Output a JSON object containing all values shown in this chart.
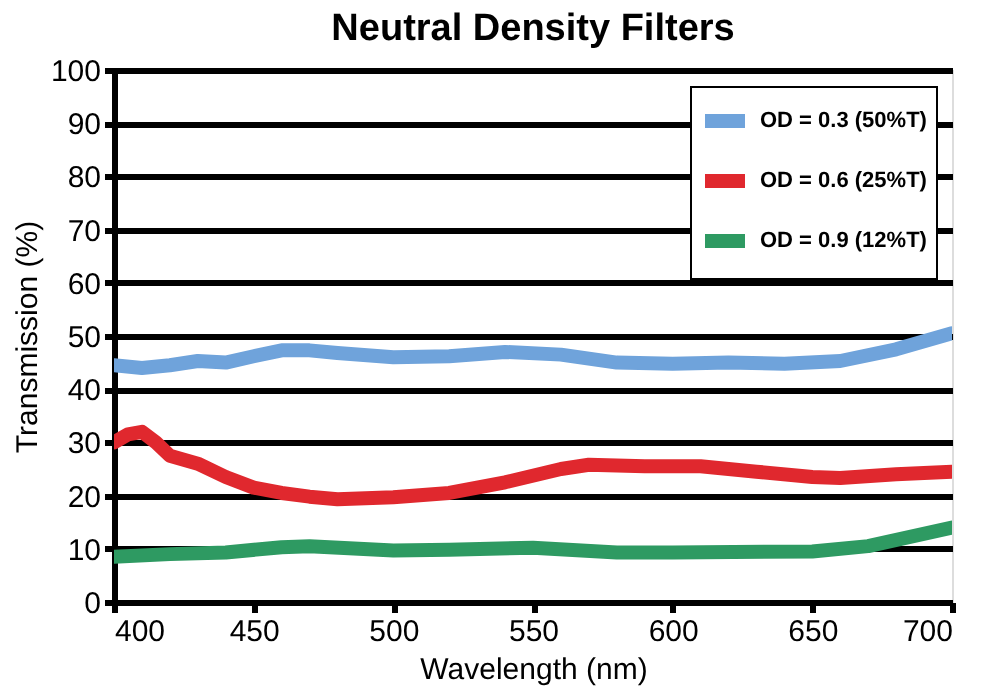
{
  "chart_data": {
    "type": "line",
    "title": "Neutral Density Filters",
    "xlabel": "Wavelength (nm)",
    "ylabel": "Transmission (%)",
    "xlim": [
      400,
      700
    ],
    "xticks": [
      400,
      450,
      500,
      550,
      600,
      650,
      700
    ],
    "ylim": [
      0,
      100
    ],
    "yticks": [
      0,
      10,
      20,
      30,
      40,
      50,
      60,
      70,
      80,
      90,
      100
    ],
    "grid": "y",
    "legend": "top right",
    "line_style": "solid",
    "series": [
      {
        "name": "OD = 0.3 (50%T)",
        "color": "#6fa3db",
        "x": [
          400,
          410,
          420,
          430,
          440,
          450,
          460,
          470,
          480,
          500,
          520,
          540,
          560,
          580,
          600,
          620,
          640,
          660,
          680,
          700
        ],
        "values": [
          44.5,
          44,
          44.5,
          45.3,
          45,
          46.2,
          47.3,
          47.3,
          46.8,
          46,
          46.2,
          47,
          46.5,
          45,
          44.8,
          45,
          44.8,
          45.3,
          47.5,
          50.5
        ]
      },
      {
        "name": "OD = 0.6 (25%T)",
        "color": "#e0282e",
        "x": [
          400,
          405,
          410,
          415,
          420,
          430,
          440,
          450,
          460,
          470,
          480,
          500,
          520,
          540,
          560,
          570,
          590,
          610,
          630,
          650,
          660,
          680,
          700
        ],
        "values": [
          30,
          31.5,
          32,
          30,
          27.5,
          26,
          23.5,
          21.5,
          20.5,
          19.8,
          19.3,
          19.7,
          20.5,
          22.5,
          25,
          25.8,
          25.5,
          25.5,
          24.5,
          23.5,
          23.3,
          24,
          24.5
        ]
      },
      {
        "name": "OD = 0.9 (12%T)",
        "color": "#2e9a62",
        "x": [
          400,
          420,
          440,
          460,
          470,
          500,
          520,
          550,
          580,
          600,
          650,
          670,
          700
        ],
        "values": [
          8.5,
          9,
          9.3,
          10.3,
          10.5,
          9.7,
          9.8,
          10.2,
          9.3,
          9.3,
          9.5,
          10.5,
          14
        ]
      }
    ]
  }
}
